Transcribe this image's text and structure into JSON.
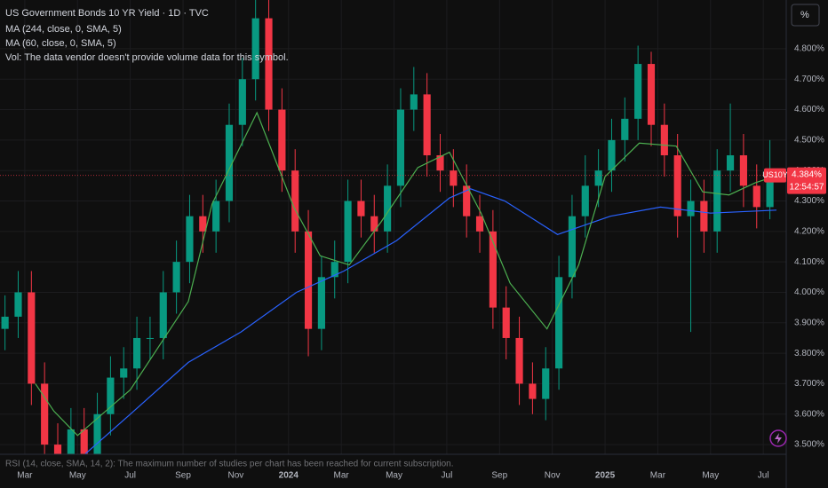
{
  "chart_data": {
    "type": "candlestick",
    "title": "US Government Bonds 10 YR Yield · 1D · TVC",
    "legend_lines": [
      "Vol: The data vendor doesn't provide volume data for this symbol."
    ],
    "bottom_note": "RSI (14, close, SMA, 14, 2): The maximum number of studies per chart has been reached for current subscription.",
    "unit_button": "%",
    "symbol": "US10Y",
    "last_price": {
      "value": 4.384,
      "label": "4.384%"
    },
    "countdown": "12:54:57",
    "up_color": "#089981",
    "down_color": "#f23645",
    "grid": true,
    "xlim": [
      1.06,
      30.87
    ],
    "ylim": [
      3.474,
      4.96
    ],
    "xticks": [
      {
        "value": 2,
        "label": "Mar"
      },
      {
        "value": 4,
        "label": "May"
      },
      {
        "value": 6,
        "label": "Jul"
      },
      {
        "value": 8,
        "label": "Sep"
      },
      {
        "value": 10,
        "label": "Nov"
      },
      {
        "value": 12,
        "label": "2024"
      },
      {
        "value": 14,
        "label": "Mar"
      },
      {
        "value": 16,
        "label": "May"
      },
      {
        "value": 18,
        "label": "Jul"
      },
      {
        "value": 20,
        "label": "Sep"
      },
      {
        "value": 22,
        "label": "Nov"
      },
      {
        "value": 24,
        "label": "2025"
      },
      {
        "value": 26,
        "label": "Mar"
      },
      {
        "value": 28,
        "label": "May"
      },
      {
        "value": 30,
        "label": "Jul"
      }
    ],
    "yticks": [
      {
        "value": 3.5,
        "label": "3.500%"
      },
      {
        "value": 3.6,
        "label": "3.600%"
      },
      {
        "value": 3.7,
        "label": "3.700%"
      },
      {
        "value": 3.8,
        "label": "3.800%"
      },
      {
        "value": 3.9,
        "label": "3.900%"
      },
      {
        "value": 4.0,
        "label": "4.000%"
      },
      {
        "value": 4.1,
        "label": "4.100%"
      },
      {
        "value": 4.2,
        "label": "4.200%"
      },
      {
        "value": 4.3,
        "label": "4.300%"
      },
      {
        "value": 4.4,
        "label": "4.400%"
      },
      {
        "value": 4.5,
        "label": "4.500%"
      },
      {
        "value": 4.6,
        "label": "4.600%"
      },
      {
        "value": 4.7,
        "label": "4.700%"
      },
      {
        "value": 4.8,
        "label": "4.800%"
      }
    ],
    "candles": {
      "x": [
        1.25,
        1.75,
        2.25,
        2.75,
        3.25,
        3.75,
        4.25,
        4.75,
        5.25,
        5.75,
        6.25,
        6.75,
        7.25,
        7.75,
        8.25,
        8.75,
        9.25,
        9.75,
        10.25,
        10.75,
        11.25,
        11.75,
        12.25,
        12.75,
        13.25,
        13.75,
        14.25,
        14.75,
        15.25,
        15.75,
        16.25,
        16.75,
        17.25,
        17.75,
        18.25,
        18.75,
        19.25,
        19.75,
        20.25,
        20.75,
        21.25,
        21.75,
        22.25,
        22.75,
        23.25,
        23.75,
        24.25,
        24.75,
        25.25,
        25.75,
        26.25,
        26.75,
        27.25,
        27.75,
        28.25,
        28.75,
        29.25,
        29.75,
        30.25
      ],
      "open": [
        3.88,
        3.92,
        4.0,
        3.7,
        3.5,
        3.45,
        3.55,
        3.45,
        3.6,
        3.72,
        3.75,
        3.85,
        3.85,
        4.0,
        4.1,
        4.25,
        4.2,
        4.3,
        4.55,
        4.7,
        4.9,
        4.6,
        4.4,
        4.2,
        3.88,
        4.05,
        4.1,
        4.3,
        4.25,
        4.2,
        4.35,
        4.6,
        4.65,
        4.45,
        4.4,
        4.35,
        4.25,
        4.2,
        3.95,
        3.85,
        3.7,
        3.65,
        3.75,
        4.05,
        4.25,
        4.35,
        4.4,
        4.5,
        4.57,
        4.75,
        4.55,
        4.45,
        4.25,
        4.3,
        4.2,
        4.4,
        4.45,
        4.35,
        4.28
      ],
      "high": [
        3.99,
        4.07,
        4.07,
        3.77,
        3.57,
        3.62,
        3.62,
        3.67,
        3.79,
        3.82,
        3.92,
        3.92,
        4.07,
        4.17,
        4.32,
        4.32,
        4.37,
        4.62,
        4.77,
        4.99,
        4.97,
        4.67,
        4.47,
        4.27,
        4.12,
        4.17,
        4.37,
        4.37,
        4.32,
        4.42,
        4.67,
        4.74,
        4.72,
        4.52,
        4.47,
        4.42,
        4.32,
        4.27,
        4.02,
        3.92,
        3.77,
        3.82,
        4.12,
        4.32,
        4.45,
        4.47,
        4.57,
        4.64,
        4.81,
        4.79,
        4.62,
        4.52,
        4.37,
        4.37,
        4.47,
        4.62,
        4.52,
        4.42,
        4.5
      ],
      "low": [
        3.81,
        3.85,
        3.63,
        3.43,
        3.4,
        3.4,
        3.4,
        3.4,
        3.53,
        3.65,
        3.68,
        3.78,
        3.78,
        3.93,
        4.03,
        4.13,
        4.13,
        4.23,
        4.48,
        4.63,
        4.53,
        4.33,
        4.13,
        3.79,
        3.81,
        3.98,
        4.03,
        4.18,
        4.13,
        4.13,
        4.28,
        4.53,
        4.38,
        4.33,
        4.28,
        4.18,
        4.13,
        3.88,
        3.78,
        3.63,
        3.6,
        3.58,
        3.68,
        3.98,
        4.18,
        4.28,
        4.33,
        4.43,
        4.5,
        4.48,
        4.38,
        4.18,
        3.87,
        4.13,
        4.13,
        4.33,
        4.28,
        4.21,
        4.24
      ],
      "close": [
        3.92,
        4.0,
        3.7,
        3.5,
        3.45,
        3.55,
        3.45,
        3.6,
        3.72,
        3.75,
        3.85,
        3.85,
        4.0,
        4.1,
        4.25,
        4.2,
        4.3,
        4.55,
        4.7,
        4.9,
        4.6,
        4.4,
        4.2,
        3.88,
        4.05,
        4.1,
        4.3,
        4.25,
        4.2,
        4.35,
        4.6,
        4.65,
        4.45,
        4.4,
        4.35,
        4.25,
        4.2,
        3.95,
        3.85,
        3.7,
        3.65,
        3.75,
        4.05,
        4.25,
        4.35,
        4.4,
        4.5,
        4.57,
        4.75,
        4.55,
        4.45,
        4.25,
        4.3,
        4.2,
        4.4,
        4.45,
        4.35,
        4.28,
        4.38
      ]
    },
    "series": [
      {
        "name": "MA (244, close, 0, SMA, 5)",
        "color": "#2962ff",
        "x": [
          4.3,
          6.0,
          8.2,
          10.2,
          12.3,
          14.1,
          16.1,
          18.1,
          18.9,
          20.2,
          22.2,
          24.2,
          26.1,
          28.0,
          30.5
        ],
        "values": [
          3.47,
          3.6,
          3.77,
          3.87,
          4.0,
          4.07,
          4.17,
          4.31,
          4.34,
          4.3,
          4.19,
          4.25,
          4.28,
          4.26,
          4.27
        ]
      },
      {
        "name": "MA (60, close, 0, SMA, 5)",
        "color": "#4caf50",
        "x": [
          2.4,
          3.1,
          4.0,
          6.0,
          8.2,
          9.1,
          10.8,
          12.2,
          13.2,
          14.3,
          15.5,
          16.9,
          18.1,
          19.3,
          20.4,
          21.8,
          23.0,
          24.0,
          25.3,
          26.7,
          27.7,
          28.7,
          29.7,
          30.4
        ],
        "values": [
          3.7,
          3.61,
          3.53,
          3.68,
          3.97,
          4.29,
          4.59,
          4.28,
          4.12,
          4.09,
          4.23,
          4.41,
          4.46,
          4.26,
          4.03,
          3.88,
          4.09,
          4.38,
          4.49,
          4.48,
          4.33,
          4.32,
          4.36,
          4.38
        ]
      }
    ]
  }
}
